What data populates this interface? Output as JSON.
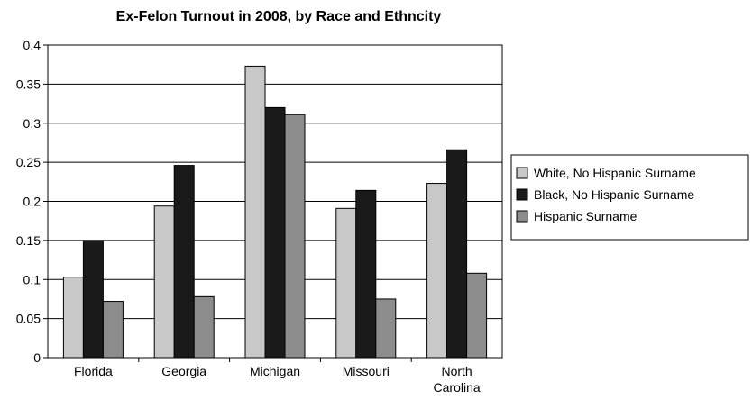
{
  "chart_data": {
    "type": "bar",
    "title": "Ex-Felon Turnout in 2008, by Race and Ethncity",
    "categories": [
      [
        "Florida"
      ],
      [
        "Georgia"
      ],
      [
        "Michigan"
      ],
      [
        "Missouri"
      ],
      [
        "North",
        "Carolina"
      ]
    ],
    "series": [
      {
        "name": "White, No Hispanic Surname",
        "values": [
          0.103,
          0.194,
          0.373,
          0.191,
          0.223
        ],
        "color": "#c8c8c8"
      },
      {
        "name": "Black, No Hispanic Surname",
        "values": [
          0.15,
          0.246,
          0.32,
          0.214,
          0.266
        ],
        "color": "#1a1a1a"
      },
      {
        "name": "Hispanic Surname",
        "values": [
          0.072,
          0.078,
          0.311,
          0.075,
          0.108
        ],
        "color": "#8c8c8c"
      }
    ],
    "ylim": [
      0,
      0.4
    ],
    "yticks": [
      "0",
      "0.05",
      "0.1",
      "0.15",
      "0.2",
      "0.25",
      "0.3",
      "0.35",
      "0.4"
    ],
    "ytick_values": [
      0,
      0.05,
      0.1,
      0.15,
      0.2,
      0.25,
      0.3,
      0.35,
      0.4
    ],
    "grid": "horizontal",
    "legend_position": "right"
  }
}
